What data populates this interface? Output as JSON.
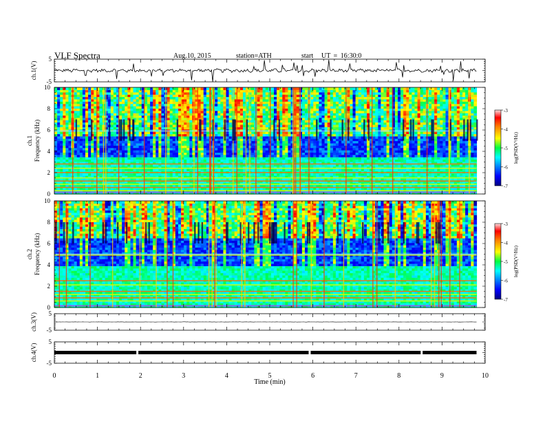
{
  "header": {
    "title": "VLF  Spectra",
    "date": "Aug.10, 2015",
    "station": "station=ATH",
    "start_label": "start",
    "start_ut": "UT  =   16:30:0"
  },
  "chart_data": [
    {
      "type": "line",
      "panel": "ch1-waveform",
      "ylabel": "ch.1(V)",
      "ylim": [
        -5,
        5
      ],
      "y_ticks": [
        "5",
        "-5"
      ],
      "xlim": [
        0,
        10
      ],
      "x_extent": [
        0,
        9.8
      ],
      "baseline": 0,
      "color": "#000000"
    },
    {
      "type": "heatmap",
      "panel": "ch1-spectrogram",
      "ylabel": "ch.1\nFrequency (kHz)",
      "ylabel_lines": [
        "ch.1",
        "Frequency (kHz)"
      ],
      "ylim": [
        0,
        10
      ],
      "y_ticks": [
        "0",
        "2",
        "4",
        "6",
        "8",
        "10"
      ],
      "xlim": [
        0,
        10
      ],
      "x_extent": [
        0,
        9.8
      ],
      "colorbar": {
        "label": "log(PSD(V²/Hz)",
        "range": [
          -7,
          -3
        ],
        "ticks": [
          "-3",
          "-4",
          "-5",
          "-6",
          "-7"
        ]
      },
      "bright_bands_khz": [
        0.3,
        0.6,
        0.9,
        1.2,
        1.5,
        2.0,
        2.4,
        2.8
      ],
      "quiet_band_khz": [
        3.5,
        5.5
      ],
      "tone_line_khz": 5.9
    },
    {
      "type": "heatmap",
      "panel": "ch2-spectrogram",
      "ylabel": "ch.2\nFrequency (kHz)",
      "ylabel_lines": [
        "ch.2",
        "Frequency (kHz)"
      ],
      "ylim": [
        0,
        10
      ],
      "y_ticks": [
        "0",
        "2",
        "4",
        "6",
        "8",
        "10"
      ],
      "xlim": [
        0,
        10
      ],
      "x_extent": [
        0,
        9.8
      ],
      "colorbar": {
        "label": "log(PSD(V²/Hz)",
        "range": [
          -7,
          -3
        ],
        "ticks": [
          "-3",
          "-4",
          "-5",
          "-6",
          "-7"
        ]
      },
      "bright_bands_khz": [
        0.6,
        0.9,
        1.2,
        1.5,
        2.1,
        2.5,
        4.9
      ],
      "quiet_band_khz": [
        4.0,
        6.5
      ],
      "tone_line_khz": 5.0
    },
    {
      "type": "line",
      "panel": "ch3-waveform",
      "ylabel": "ch.3(V)",
      "ylim": [
        -5,
        5
      ],
      "y_ticks": [
        "5",
        "-5"
      ],
      "xlim": [
        0,
        10
      ],
      "x_extent": [
        0,
        9.8
      ],
      "baseline": 0,
      "color": "#000000"
    },
    {
      "type": "line",
      "panel": "ch4-waveform",
      "ylabel": "ch.4(V)",
      "ylim": [
        -5,
        5
      ],
      "y_ticks": [
        "5",
        "-5"
      ],
      "xlim": [
        0,
        10
      ],
      "x_extent": [
        0,
        9.8
      ],
      "baseline": 0,
      "gaps_min": [
        1.95,
        5.95,
        8.55
      ],
      "color": "#000000"
    }
  ],
  "x_axis": {
    "label": "Time  (min)",
    "ticks": [
      "0",
      "1",
      "2",
      "3",
      "4",
      "5",
      "6",
      "7",
      "8",
      "9",
      "10"
    ]
  }
}
